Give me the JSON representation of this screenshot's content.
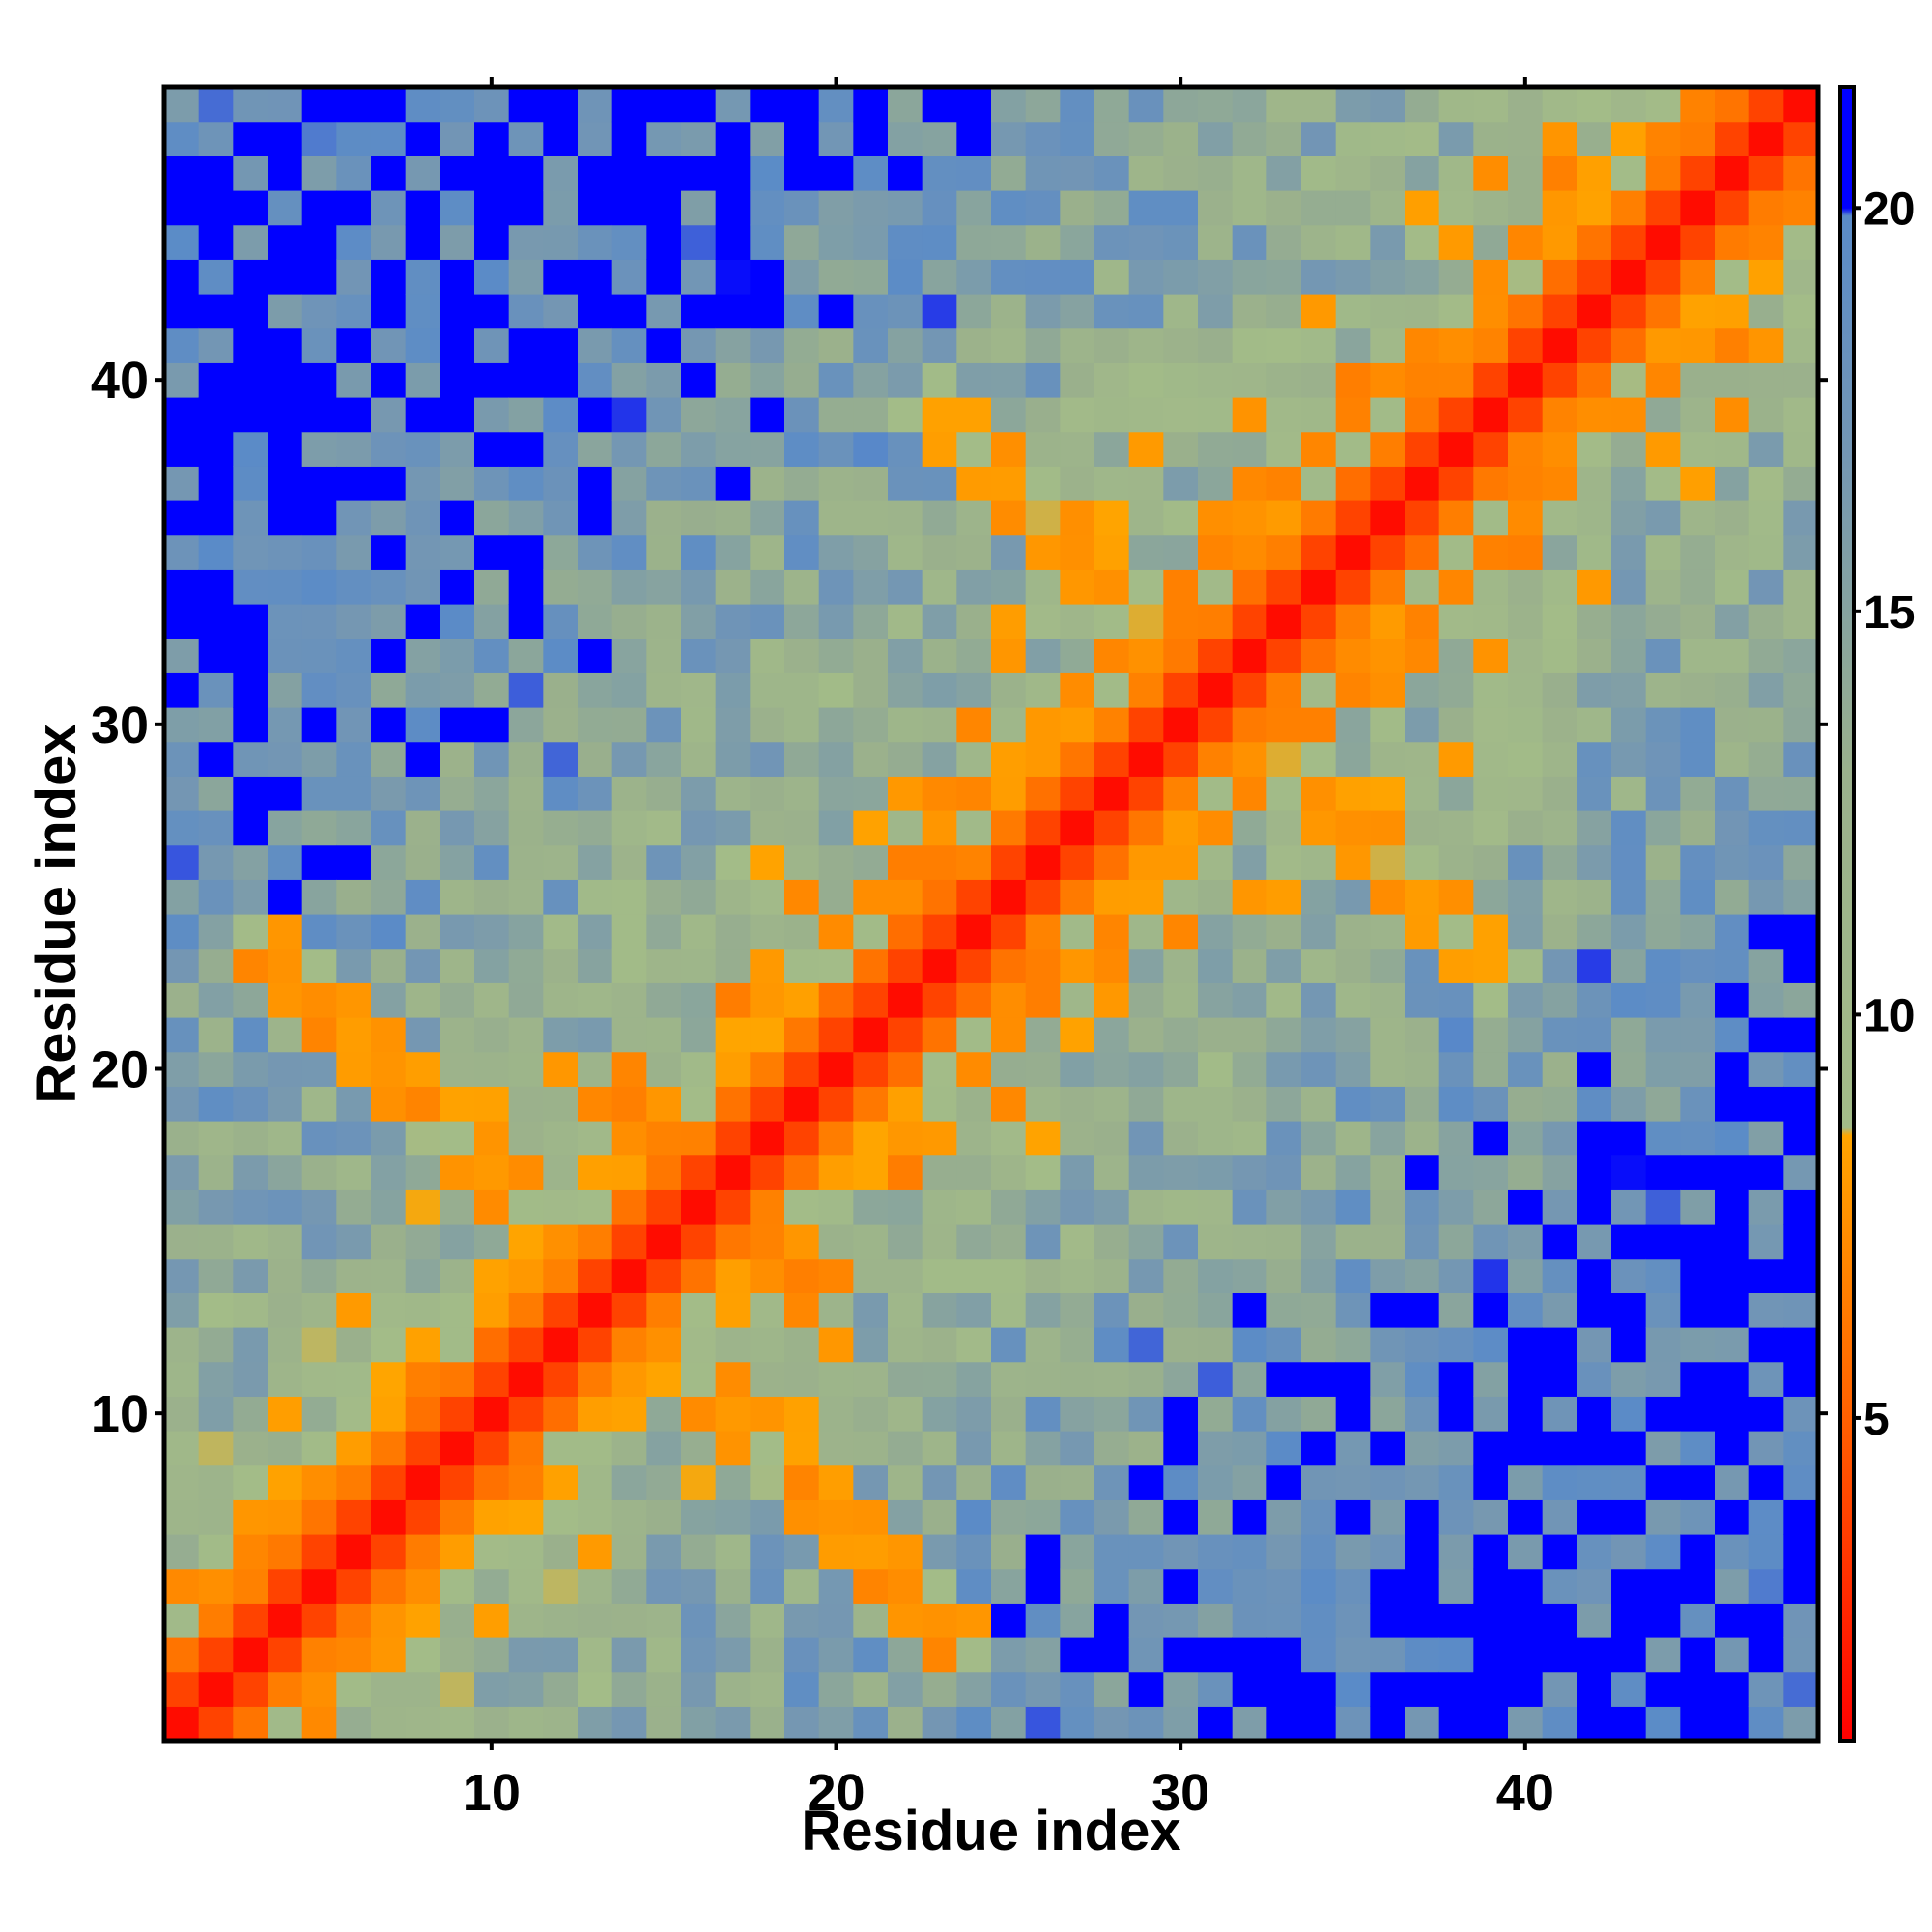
{
  "chart_data": {
    "type": "heatmap",
    "title": "",
    "xlabel": "Residue index",
    "ylabel": "Residue index",
    "n_residues": 48,
    "xlim": [
      0.5,
      48.5
    ],
    "ylim": [
      0.5,
      48.5
    ],
    "x_ticks": [
      10,
      20,
      30,
      40
    ],
    "y_ticks": [
      10,
      20,
      30,
      40
    ],
    "colorbar": {
      "ticks": [
        5,
        10,
        15,
        20
      ],
      "range": [
        1,
        21.5
      ],
      "stops": [
        {
          "value": 1.0,
          "color": "#ff0000"
        },
        {
          "value": 5.0,
          "color": "#ff6000"
        },
        {
          "value": 8.5,
          "color": "#ffa500"
        },
        {
          "value": 8.6,
          "color": "#a3bc88"
        },
        {
          "value": 13.0,
          "color": "#9ab08c"
        },
        {
          "value": 17.0,
          "color": "#7396b4"
        },
        {
          "value": 19.9,
          "color": "#5a8bc8"
        },
        {
          "value": 20.0,
          "color": "#0000ff"
        },
        {
          "value": 21.5,
          "color": "#0000ff"
        }
      ]
    },
    "matrix_description": "Symmetric distance map d(i,j): 1.5 on the diagonal (red), rising through orange/green to blue (>20) far from the diagonal.",
    "cutoff_blue": 20,
    "colors": {
      "diagonal": "#ff0000",
      "near": "#ff6000",
      "contact": "#ffa500",
      "mid_green": "#a3bc88",
      "mid_blue": "#7396b4",
      "far": "#0000ff"
    },
    "legend": "colorbar-right",
    "grid": false
  }
}
